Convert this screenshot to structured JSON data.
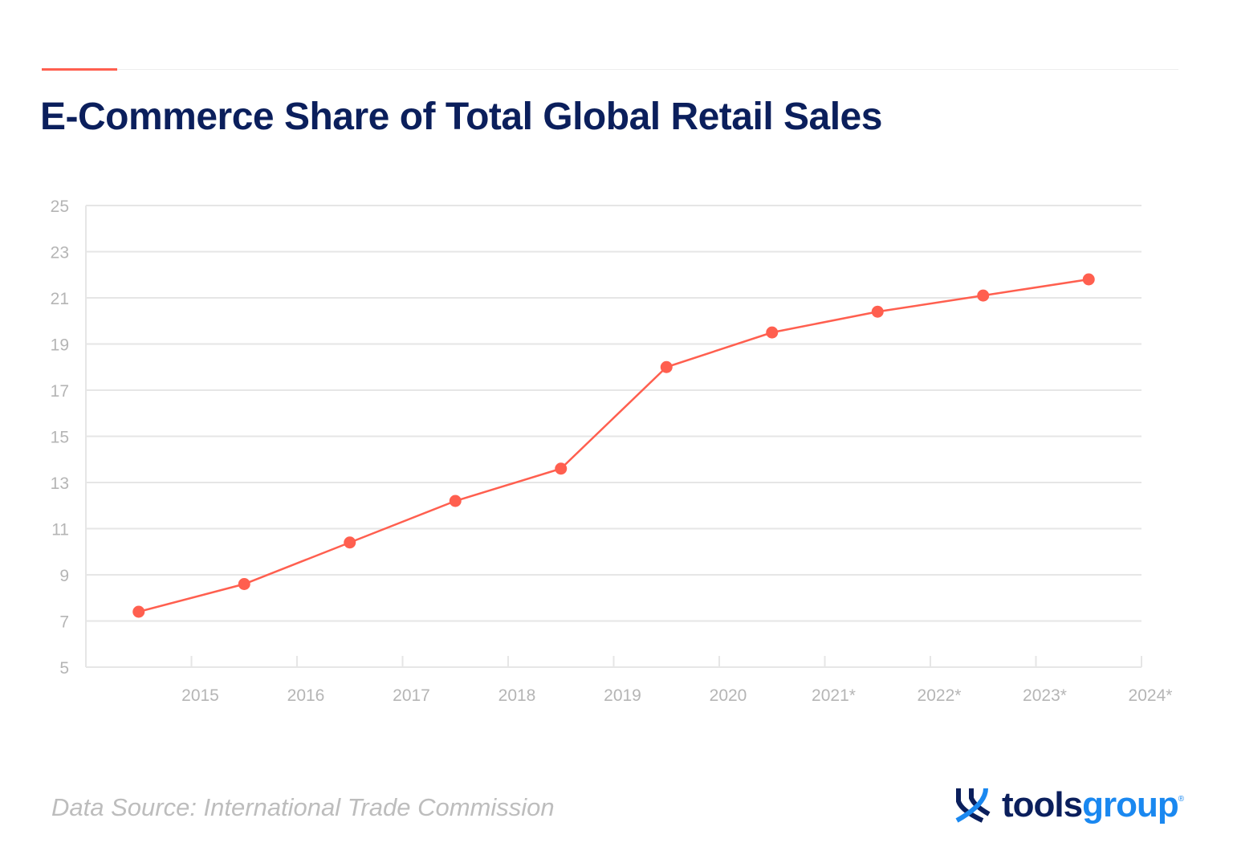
{
  "title": "E-Commerce Share of Total Global Retail Sales",
  "source": "Data Source: International Trade Commission",
  "logo": {
    "part1": "tools",
    "part2": "group",
    "reg": "®"
  },
  "colors": {
    "series": "#ff5f4f",
    "title": "#0b1f5c",
    "grid": "#e6e6e6",
    "tick_text": "#b5b5b5",
    "logo_dark": "#0b1f5c",
    "logo_blue": "#1a88f0"
  },
  "chart_data": {
    "type": "line",
    "title": "E-Commerce Share of Total Global Retail Sales",
    "categories": [
      "2015",
      "2016",
      "2017",
      "2018",
      "2019",
      "2020",
      "2021*",
      "2022*",
      "2023*",
      "2024*"
    ],
    "values": [
      7.4,
      8.6,
      10.4,
      12.2,
      13.6,
      18.0,
      19.5,
      20.4,
      21.1,
      21.8
    ],
    "ylim": [
      5,
      25
    ],
    "yticks": [
      5,
      7,
      9,
      11,
      13,
      15,
      17,
      19,
      21,
      23,
      25
    ],
    "grid": true,
    "xlabel": "",
    "ylabel": ""
  }
}
